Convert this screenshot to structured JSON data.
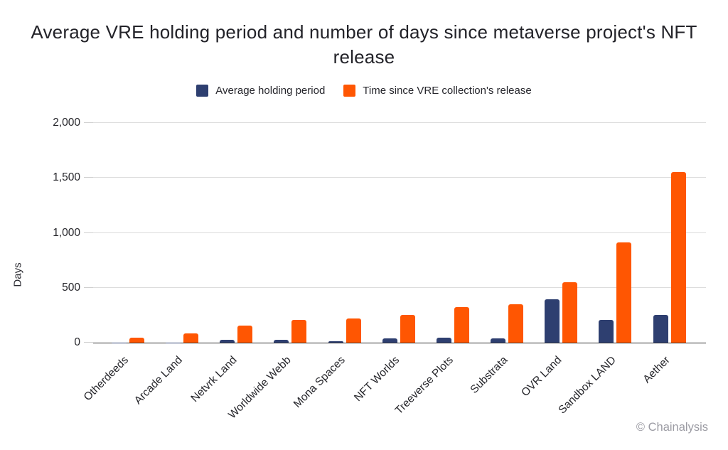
{
  "attribution": "© Chainalysis",
  "colors": {
    "navy": "#2e3f70",
    "orange": "#ff5602",
    "gridline": "#dcdcdc",
    "baseline": "#2f2f2f",
    "text": "#26262b",
    "muted": "#9b9ba3",
    "background": "#ffffff"
  },
  "chart_data": {
    "type": "bar",
    "title": "Average VRE holding period and number of days since metaverse project's NFT release",
    "xlabel": "",
    "ylabel": "Days",
    "ylim": [
      0,
      2000
    ],
    "grid": true,
    "legend_position": "top",
    "categories": [
      "Otherdeeds",
      "Arcade Land",
      "Netvrk Land",
      "Worldwide Webb",
      "Mona Spaces",
      "NFT Worlds",
      "Treeverse Plots",
      "Substrata",
      "OVR Land",
      "Sandbox LAND",
      "Aether"
    ],
    "series": [
      {
        "name": "Average holding period",
        "color": "#2e3f70",
        "values": [
          2,
          3,
          24,
          27,
          15,
          42,
          48,
          42,
          398,
          210,
          250
        ]
      },
      {
        "name": "Time since VRE collection's release",
        "color": "#ff5602",
        "values": [
          48,
          85,
          157,
          207,
          223,
          250,
          322,
          350,
          552,
          915,
          1553
        ]
      }
    ],
    "yticks": [
      {
        "value": 0,
        "label": "0"
      },
      {
        "value": 500,
        "label": "500"
      },
      {
        "value": 1000,
        "label": "1,000"
      },
      {
        "value": 1500,
        "label": "1,500"
      },
      {
        "value": 2000,
        "label": "2,000"
      }
    ]
  }
}
